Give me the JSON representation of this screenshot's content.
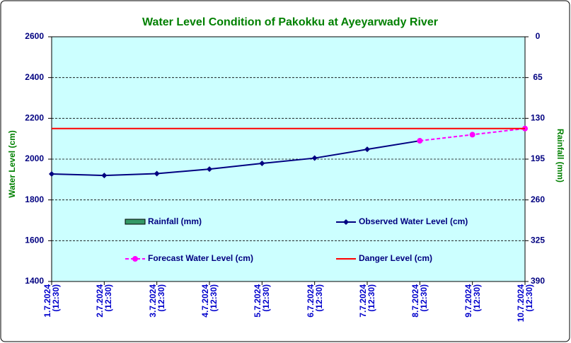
{
  "chart_data": {
    "type": "line",
    "title": "Water Level Condition of Pakokku at Ayeyarwady River",
    "y_label": "Water Level (cm)",
    "y2_label": "Rainfall (mm)",
    "categories": [
      "1.7.2024\n(12:30)",
      "2.7.2024\n(12:30)",
      "3.7.2024\n(12:30)",
      "4.7.2024\n(12:30)",
      "5.7.2024\n(12:30)",
      "6.7.2024\n(12:30)",
      "7.7.2024\n(12:30)",
      "8.7.2024\n(12:30)",
      "9.7.2024\n(12:30)",
      "10.7.2024\n(12:30)"
    ],
    "ylim": [
      1400,
      2600
    ],
    "yticks": [
      1400,
      1600,
      1800,
      2000,
      2200,
      2400,
      2600
    ],
    "y2lim": [
      390,
      0
    ],
    "y2ticks": [
      0,
      65,
      130,
      195,
      260,
      325,
      390
    ],
    "grid": true,
    "series": [
      {
        "name": "Rainfall (mm)",
        "color": "#339966",
        "axis": "y2",
        "kind": "bar",
        "values": [
          null,
          null,
          null,
          null,
          null,
          null,
          null,
          null,
          null,
          null
        ]
      },
      {
        "name": "Observed Water Level (cm)",
        "color": "#000080",
        "kind": "line",
        "marker": "diamond",
        "values": [
          1927,
          1920,
          1929,
          1951,
          1979,
          2005,
          2048,
          2090,
          null,
          null
        ]
      },
      {
        "name": "Forecast Water Level (cm)",
        "color": "#ff00ff",
        "kind": "line",
        "marker": "circle",
        "dashed": true,
        "values": [
          null,
          null,
          null,
          null,
          null,
          null,
          null,
          2090,
          2120,
          2150
        ]
      },
      {
        "name": "Danger Level (cm)",
        "color": "#ff0000",
        "kind": "line",
        "values": [
          2150,
          2150,
          2150,
          2150,
          2150,
          2150,
          2150,
          2150,
          2150,
          2150
        ]
      }
    ]
  }
}
